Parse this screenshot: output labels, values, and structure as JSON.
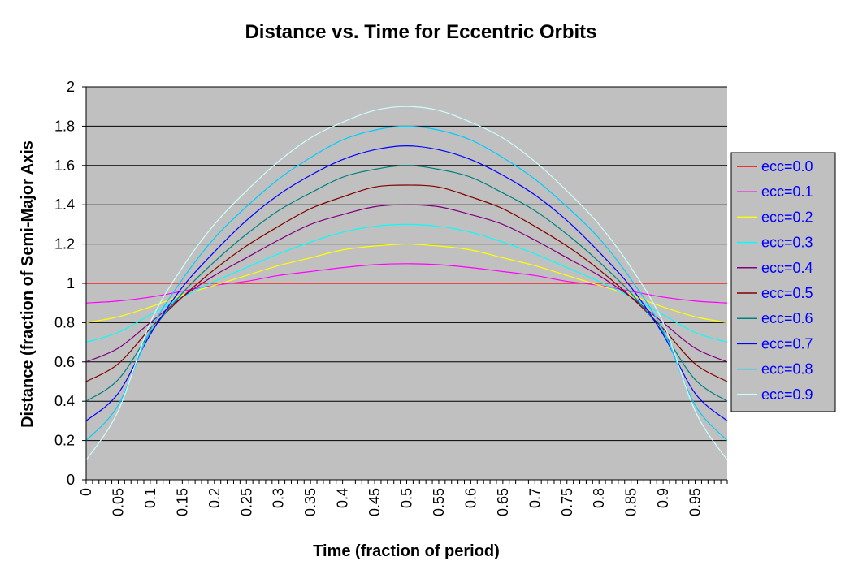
{
  "chart_data": {
    "type": "line",
    "title": "Distance vs. Time for Eccentric Orbits",
    "xlabel": "Time (fraction of period)",
    "ylabel": "Distance (fraction of Semi-Major Axis",
    "xlim": [
      0,
      1
    ],
    "ylim": [
      0,
      2
    ],
    "x_ticks": [
      "0",
      "0.05",
      "0.1",
      "0.15",
      "0.2",
      "0.25",
      "0.3",
      "0.35",
      "0.4",
      "0.45",
      "0.5",
      "0.55",
      "0.6",
      "0.65",
      "0.7",
      "0.75",
      "0.8",
      "0.85",
      "0.9",
      "0.95"
    ],
    "y_ticks": [
      "0",
      "0.2",
      "0.4",
      "0.6",
      "0.8",
      "1",
      "1.2",
      "1.4",
      "1.6",
      "1.8",
      "2"
    ],
    "grid": "horizontal",
    "legend_position": "right",
    "x": [
      0,
      0.05,
      0.1,
      0.15,
      0.2,
      0.25,
      0.3,
      0.35,
      0.4,
      0.45,
      0.5,
      0.55,
      0.6,
      0.65,
      0.7,
      0.75,
      0.8,
      0.85,
      0.9,
      0.95,
      1
    ],
    "series": [
      {
        "name": "ecc=0.0",
        "color": "#ff0000",
        "values": [
          1,
          1,
          1,
          1,
          1,
          1,
          1,
          1,
          1,
          1,
          1,
          1,
          1,
          1,
          1,
          1,
          1,
          1,
          1,
          1,
          1
        ]
      },
      {
        "name": "ecc=0.1",
        "color": "#ff00ff",
        "values": [
          0.9,
          0.91,
          0.93,
          0.96,
          0.99,
          1.01,
          1.04,
          1.06,
          1.08,
          1.095,
          1.1,
          1.095,
          1.08,
          1.06,
          1.04,
          1.01,
          0.99,
          0.96,
          0.93,
          0.91,
          0.9
        ]
      },
      {
        "name": "ecc=0.2",
        "color": "#ffff00",
        "values": [
          0.8,
          0.83,
          0.88,
          0.94,
          0.99,
          1.04,
          1.09,
          1.13,
          1.17,
          1.19,
          1.2,
          1.19,
          1.17,
          1.13,
          1.09,
          1.04,
          0.99,
          0.94,
          0.88,
          0.83,
          0.8
        ]
      },
      {
        "name": "ecc=0.3",
        "color": "#00ffff",
        "values": [
          0.7,
          0.75,
          0.84,
          0.93,
          1.01,
          1.08,
          1.15,
          1.21,
          1.26,
          1.29,
          1.3,
          1.29,
          1.26,
          1.21,
          1.15,
          1.08,
          1.01,
          0.93,
          0.84,
          0.75,
          0.7
        ]
      },
      {
        "name": "ecc=0.4",
        "color": "#800080",
        "values": [
          0.6,
          0.67,
          0.8,
          0.93,
          1.04,
          1.13,
          1.22,
          1.3,
          1.35,
          1.39,
          1.4,
          1.39,
          1.35,
          1.3,
          1.22,
          1.13,
          1.04,
          0.93,
          0.8,
          0.67,
          0.6
        ]
      },
      {
        "name": "ecc=0.5",
        "color": "#800000",
        "values": [
          0.5,
          0.59,
          0.77,
          0.93,
          1.07,
          1.19,
          1.29,
          1.38,
          1.44,
          1.49,
          1.5,
          1.49,
          1.44,
          1.38,
          1.29,
          1.19,
          1.07,
          0.93,
          0.77,
          0.59,
          0.5
        ]
      },
      {
        "name": "ecc=0.6",
        "color": "#008080",
        "values": [
          0.4,
          0.51,
          0.75,
          0.95,
          1.11,
          1.25,
          1.37,
          1.46,
          1.54,
          1.58,
          1.6,
          1.58,
          1.54,
          1.46,
          1.37,
          1.25,
          1.11,
          0.95,
          0.75,
          0.51,
          0.4
        ]
      },
      {
        "name": "ecc=0.7",
        "color": "#0000ff",
        "values": [
          0.3,
          0.44,
          0.74,
          0.98,
          1.16,
          1.32,
          1.45,
          1.55,
          1.63,
          1.68,
          1.7,
          1.68,
          1.63,
          1.55,
          1.45,
          1.32,
          1.16,
          0.98,
          0.74,
          0.44,
          0.3
        ]
      },
      {
        "name": "ecc=0.8",
        "color": "#00ccff",
        "values": [
          0.2,
          0.38,
          0.76,
          1.02,
          1.23,
          1.39,
          1.53,
          1.64,
          1.73,
          1.78,
          1.8,
          1.78,
          1.73,
          1.64,
          1.53,
          1.39,
          1.23,
          1.02,
          0.76,
          0.38,
          0.2
        ]
      },
      {
        "name": "ecc=0.9",
        "color": "#ccffff",
        "values": [
          0.1,
          0.35,
          0.8,
          1.08,
          1.3,
          1.47,
          1.62,
          1.74,
          1.82,
          1.88,
          1.9,
          1.88,
          1.82,
          1.74,
          1.62,
          1.47,
          1.3,
          1.08,
          0.8,
          0.35,
          0.1
        ]
      }
    ]
  }
}
